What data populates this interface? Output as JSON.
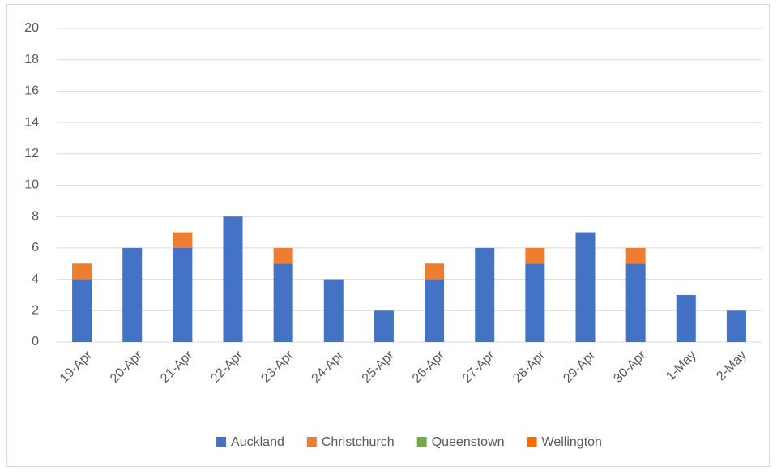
{
  "chart_data": {
    "type": "stacked_bar",
    "categories": [
      "19-Apr",
      "20-Apr",
      "21-Apr",
      "22-Apr",
      "23-Apr",
      "24-Apr",
      "25-Apr",
      "26-Apr",
      "27-Apr",
      "28-Apr",
      "29-Apr",
      "30-Apr",
      "1-May",
      "2-May"
    ],
    "series": [
      {
        "name": "Auckland",
        "color": "#4472c4",
        "values": [
          4,
          6,
          6,
          8,
          5,
          4,
          2,
          4,
          6,
          5,
          7,
          5,
          3,
          2
        ]
      },
      {
        "name": "Christchurch",
        "color": "#ed7d31",
        "values": [
          1,
          0,
          1,
          0,
          1,
          0,
          0,
          1,
          0,
          1,
          0,
          1,
          0,
          0
        ]
      },
      {
        "name": "Queenstown",
        "color": "#70ad47",
        "values": [
          0,
          0,
          0,
          0,
          0,
          0,
          0,
          0,
          0,
          0,
          0,
          0,
          0,
          0
        ]
      },
      {
        "name": "Wellington",
        "color": "#ff6a00",
        "values": [
          0,
          0,
          0,
          0,
          0,
          0,
          0,
          0,
          0,
          0,
          0,
          0,
          0,
          0
        ]
      }
    ],
    "ylim": [
      0,
      20
    ],
    "yticks": [
      0,
      2,
      4,
      6,
      8,
      10,
      12,
      14,
      16,
      18,
      20
    ],
    "grid": true,
    "legend": "bottom"
  }
}
